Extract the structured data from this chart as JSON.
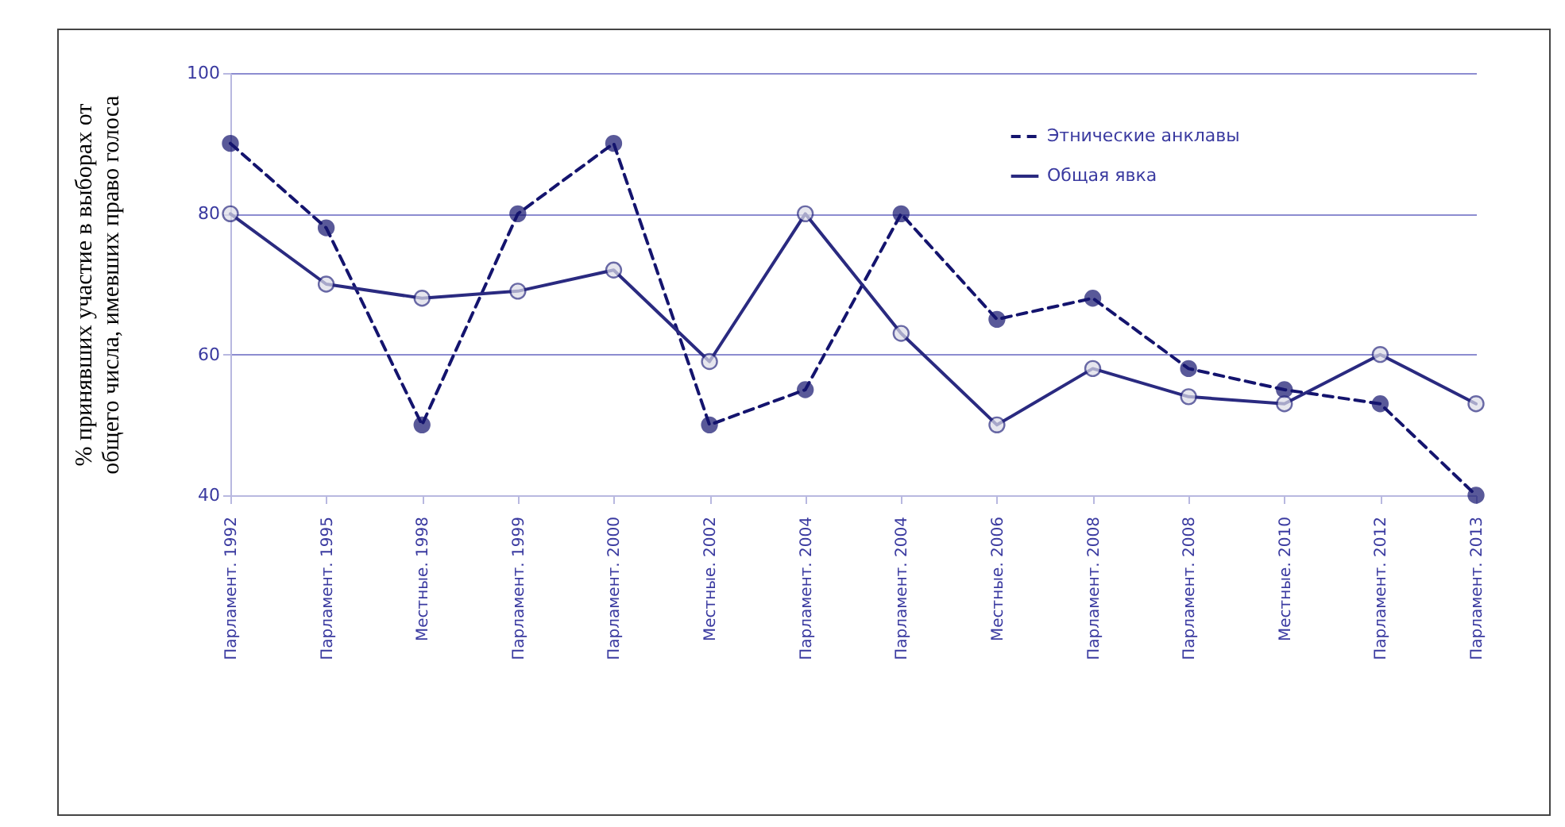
{
  "chart_data": {
    "type": "line",
    "ylabel": "% принявших участие в выборах от общего числа, имевших право голоса",
    "categories": [
      "Парламент. 1992",
      "Парламент. 1995",
      "Местные. 1998",
      "Парламент. 1999",
      "Парламент. 2000",
      "Местные. 2002",
      "Парламент. 2004",
      "Парламент. 2004",
      "Местные. 2006",
      "Парламент. 2008",
      "Парламент. 2008",
      "Местные. 2010",
      "Парламент. 2012",
      "Парламент. 2013"
    ],
    "series": [
      {
        "name": "Этнические анклавы",
        "color": "#14146e",
        "line_style": "dashed",
        "values": [
          90,
          78,
          50,
          80,
          90,
          50,
          55,
          80,
          65,
          68,
          58,
          55,
          53,
          40
        ]
      },
      {
        "name": "Общая явка",
        "color": "#2a2a80",
        "line_style": "solid",
        "values": [
          80,
          70,
          68,
          69,
          72,
          59,
          80,
          63,
          50,
          58,
          54,
          53,
          60,
          53
        ]
      }
    ],
    "ylim": [
      40,
      100
    ],
    "yticks": [
      40,
      60,
      80,
      100
    ],
    "grid": "y",
    "legend": "top right",
    "marker": "circle"
  }
}
